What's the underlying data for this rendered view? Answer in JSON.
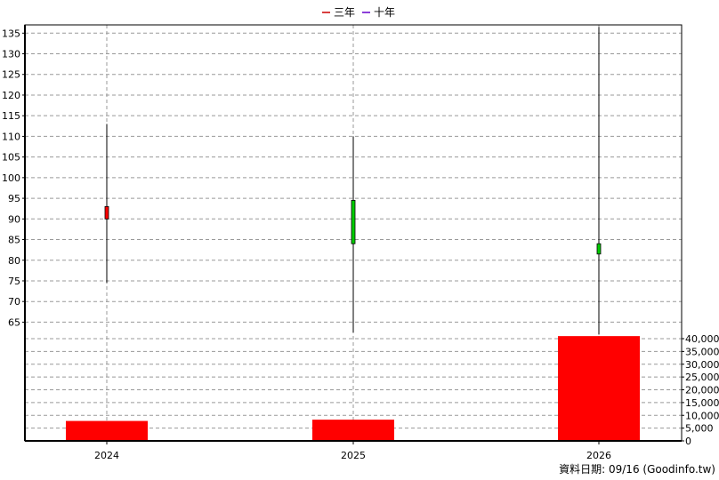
{
  "legend": {
    "items": [
      {
        "label": "三年",
        "color": "#cc0000"
      },
      {
        "label": "十年",
        "color": "#6600cc"
      }
    ]
  },
  "footer": {
    "text": "資料日期: 09/16  (Goodinfo.tw)"
  },
  "chart_data": [
    {
      "type": "candlestick",
      "categories": [
        "2024",
        "2025",
        "2026"
      ],
      "candles": [
        {
          "open": 90,
          "close": 93,
          "high": 113,
          "low": 74.5,
          "color": "#ff0000"
        },
        {
          "open": 94.5,
          "close": 84,
          "high": 110,
          "low": 62.5,
          "color": "#00cc00"
        },
        {
          "open": 84,
          "close": 81.5,
          "high": 136.5,
          "low": 62,
          "color": "#00cc00"
        }
      ],
      "ylim": [
        61,
        137
      ],
      "y_ticks": [
        65,
        70,
        75,
        80,
        85,
        90,
        95,
        100,
        105,
        110,
        115,
        120,
        125,
        130,
        135
      ],
      "grid": true,
      "legend_position": "top-center"
    },
    {
      "type": "bar",
      "categories": [
        "2024",
        "2025",
        "2026"
      ],
      "values": [
        7800,
        8300,
        41000
      ],
      "color": "#ff0000",
      "ylim": [
        0,
        40000
      ],
      "y_ticks": [
        0,
        5000,
        10000,
        15000,
        20000,
        25000,
        30000,
        35000,
        40000
      ],
      "y_tick_labels": [
        "0",
        "5,000",
        "10,000",
        "15,000",
        "20,000",
        "25,000",
        "30,000",
        "35,000",
        "40,000"
      ],
      "grid": true
    }
  ]
}
